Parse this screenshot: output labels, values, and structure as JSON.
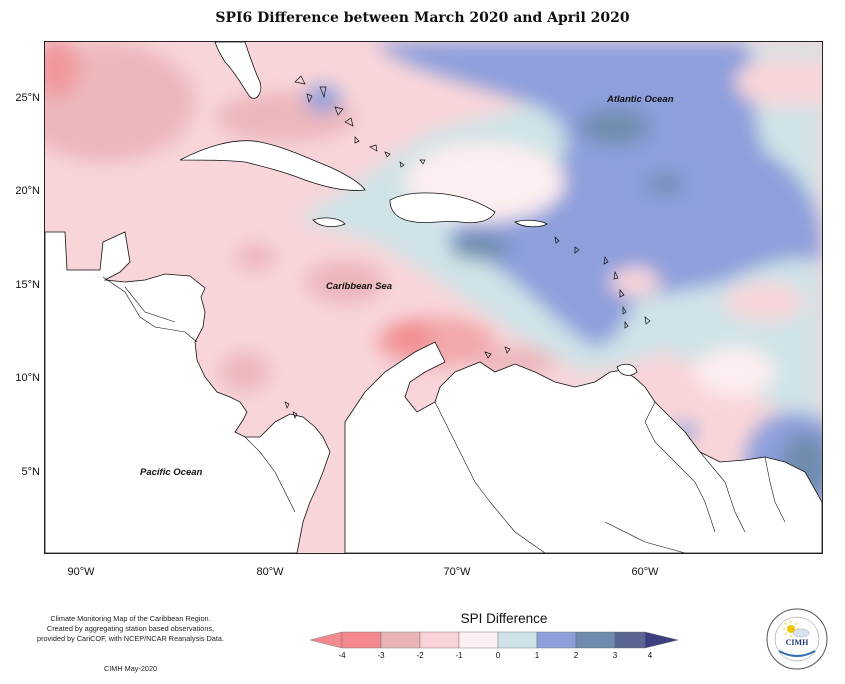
{
  "title": "SPI6 Difference between March 2020 and April 2020",
  "latitude_labels": [
    "25°N",
    "20°N",
    "15°N",
    "10°N",
    "5°N"
  ],
  "longitude_labels": [
    "90°W",
    "80°W",
    "70°W",
    "60°W"
  ],
  "place_labels": {
    "atlantic": "Atlantic Ocean",
    "caribbean": "Caribbean Sea",
    "pacific": "Pacific Ocean"
  },
  "credits": {
    "line1": "Climate Monitoring Map of the Caribbean Region.",
    "line2": "Created by aggregating station based observations,",
    "line3": "provided by CariCOF, with NCEP/NCAR Reanalysis Data.",
    "date": "CIMH May-2020"
  },
  "legend": {
    "title": "SPI Difference",
    "ticks": [
      "-4",
      "-3",
      "-2",
      "-1",
      "0",
      "1",
      "2",
      "3",
      "4"
    ],
    "colors": [
      "#f48a8f",
      "#ebb5b8",
      "#f8d3d7",
      "#fdeeef",
      "#cde3e7",
      "#8f9fdb",
      "#6f8bab",
      "#5a6592"
    ]
  },
  "logo": {
    "text": "CIMH",
    "icon": "sun-cloud-logo"
  },
  "colors": {
    "land": "#ffffff",
    "coast": "#111111"
  }
}
